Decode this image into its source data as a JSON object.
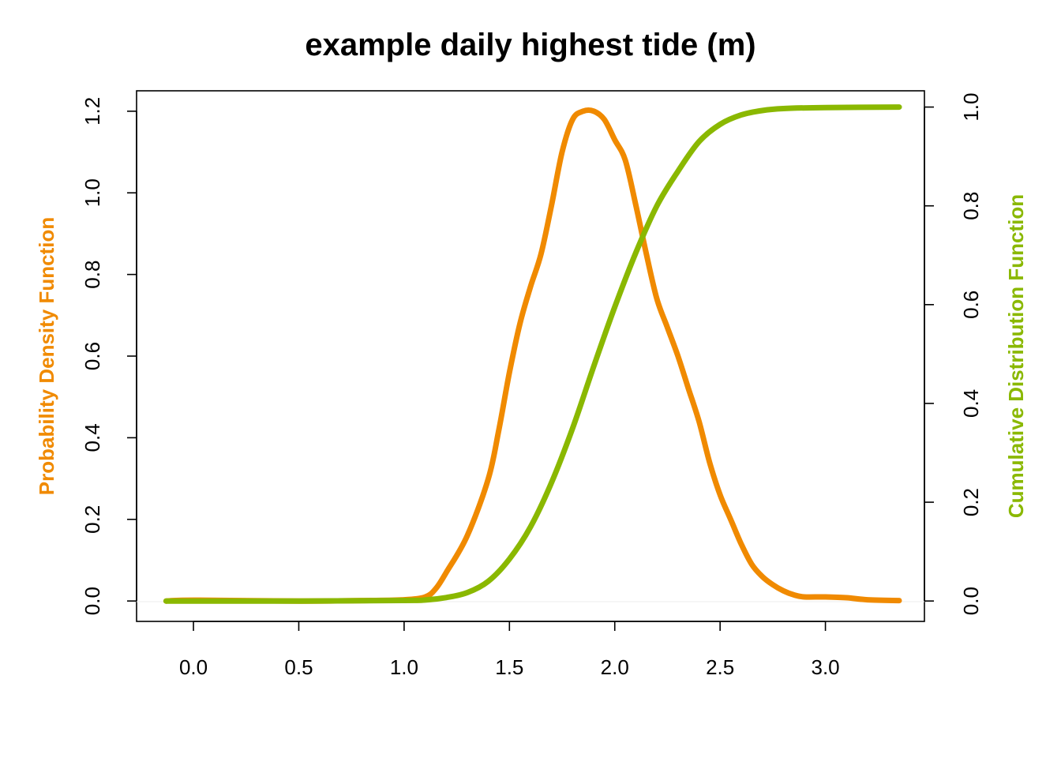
{
  "chart_data": {
    "type": "line",
    "title": "example daily highest tide (m)",
    "xlabel": "",
    "xlim": [
      -0.27,
      3.47
    ],
    "x_ticks": [
      "0.0",
      "0.5",
      "1.0",
      "1.5",
      "2.0",
      "2.5",
      "3.0"
    ],
    "x_tick_values": [
      0.0,
      0.5,
      1.0,
      1.5,
      2.0,
      2.5,
      3.0
    ],
    "y_left": {
      "label": "Probability Density Function",
      "color": "#F08A00",
      "lim": [
        -0.05,
        1.25
      ],
      "ticks": [
        "0.0",
        "0.2",
        "0.4",
        "0.6",
        "0.8",
        "1.0",
        "1.2"
      ],
      "tick_values": [
        0.0,
        0.2,
        0.4,
        0.6,
        0.8,
        1.0,
        1.2
      ]
    },
    "y_right": {
      "label": "Cumulative Distribution Function",
      "color": "#8AB800",
      "lim": [
        -0.0413,
        1.0329
      ],
      "ticks": [
        "0.0",
        "0.2",
        "0.4",
        "0.6",
        "0.8",
        "1.0"
      ],
      "tick_values": [
        0.0,
        0.2,
        0.4,
        0.6,
        0.8,
        1.0
      ]
    },
    "grid": false,
    "legend": "none",
    "series": [
      {
        "name": "Probability Density Function",
        "axis": "left",
        "color": "#F08A00",
        "x": [
          -0.13,
          0.0,
          0.5,
          0.8,
          1.0,
          1.1,
          1.15,
          1.2,
          1.3,
          1.4,
          1.45,
          1.5,
          1.55,
          1.6,
          1.65,
          1.7,
          1.75,
          1.8,
          1.85,
          1.9,
          1.95,
          2.0,
          2.05,
          2.1,
          2.15,
          2.2,
          2.25,
          2.3,
          2.35,
          2.4,
          2.45,
          2.5,
          2.55,
          2.6,
          2.65,
          2.7,
          2.75,
          2.8,
          2.85,
          2.9,
          3.0,
          3.1,
          3.2,
          3.35
        ],
        "values": [
          0.0,
          0.002,
          0.0,
          0.001,
          0.003,
          0.01,
          0.03,
          0.07,
          0.16,
          0.3,
          0.42,
          0.56,
          0.68,
          0.77,
          0.85,
          0.97,
          1.1,
          1.18,
          1.2,
          1.2,
          1.18,
          1.13,
          1.08,
          0.97,
          0.85,
          0.74,
          0.67,
          0.6,
          0.52,
          0.44,
          0.34,
          0.26,
          0.2,
          0.14,
          0.09,
          0.06,
          0.04,
          0.025,
          0.015,
          0.01,
          0.01,
          0.008,
          0.003,
          0.001
        ]
      },
      {
        "name": "Cumulative Distribution Function",
        "axis": "right",
        "color": "#8AB800",
        "x": [
          -0.13,
          0.5,
          1.0,
          1.1,
          1.2,
          1.3,
          1.4,
          1.5,
          1.6,
          1.7,
          1.8,
          1.9,
          2.0,
          2.1,
          2.2,
          2.3,
          2.4,
          2.5,
          2.6,
          2.7,
          2.8,
          3.0,
          3.35
        ],
        "values": [
          0.0,
          0.0,
          0.001,
          0.002,
          0.007,
          0.017,
          0.04,
          0.085,
          0.15,
          0.24,
          0.35,
          0.475,
          0.595,
          0.705,
          0.8,
          0.87,
          0.93,
          0.965,
          0.984,
          0.993,
          0.997,
          0.999,
          1.0
        ]
      }
    ]
  }
}
